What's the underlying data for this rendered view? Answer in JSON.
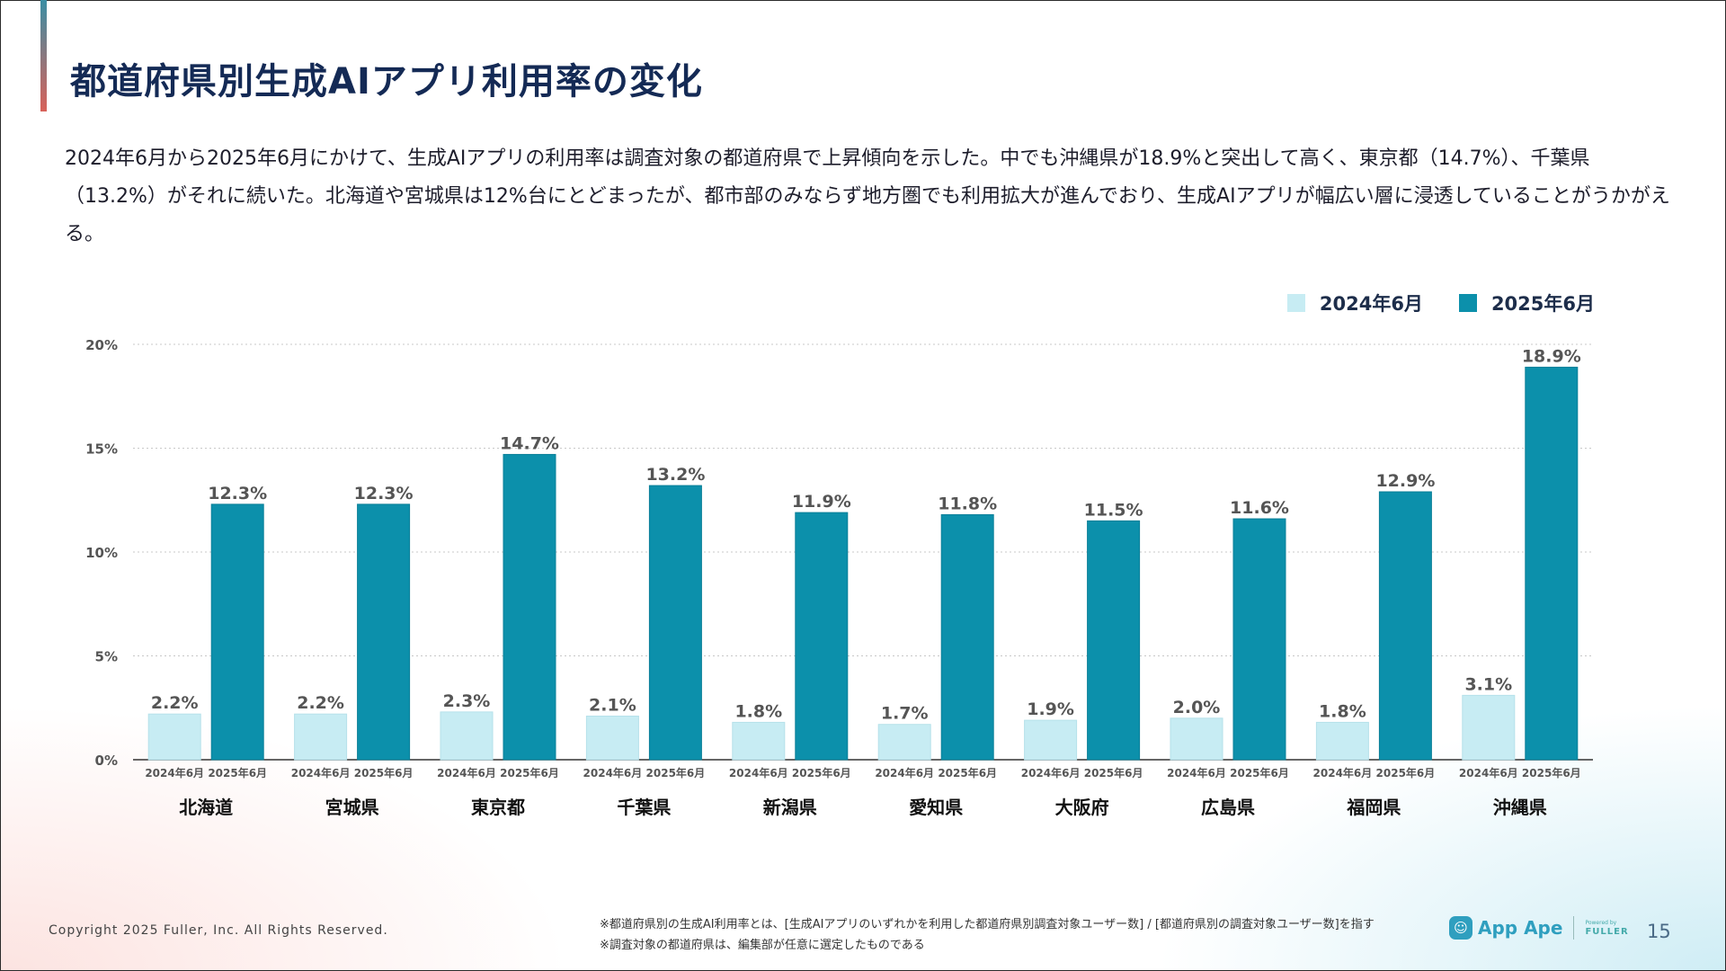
{
  "title": "都道府県別生成AIアプリ利用率の変化",
  "summary": "2024年6月から2025年6月にかけて、生成AIアプリの利用率は調査対象の都道府県で上昇傾向を示した。中でも沖縄県が18.9%と突出して高く、東京都（14.7%）、千葉県（13.2%）がそれに続いた。北海道や宮城県は12%台にとどまったが、都市部のみならず地方圏でも利用拡大が進んでおり、生成AIアプリが幅広い層に浸透していることがうかがえる。",
  "legend": [
    {
      "label": "2024年6月",
      "color": "#c7ecf3"
    },
    {
      "label": "2025年6月",
      "color": "#0c90ab"
    }
  ],
  "chart_data": {
    "type": "bar",
    "categories": [
      "北海道",
      "宮城県",
      "東京都",
      "千葉県",
      "新潟県",
      "愛知県",
      "大阪府",
      "広島県",
      "福岡県",
      "沖縄県"
    ],
    "sub_labels": [
      "2024年6月",
      "2025年6月"
    ],
    "series": [
      {
        "name": "2024年6月",
        "color": "#c7ecf3",
        "values": [
          2.2,
          2.2,
          2.3,
          2.1,
          1.8,
          1.7,
          1.9,
          2.0,
          1.8,
          3.1
        ]
      },
      {
        "name": "2025年6月",
        "color": "#0c90ab",
        "values": [
          12.3,
          12.3,
          14.7,
          13.2,
          11.9,
          11.8,
          11.5,
          11.6,
          12.9,
          18.9
        ]
      }
    ],
    "value_suffix": "%",
    "ylim": [
      0,
      20
    ],
    "yticks": [
      "0%",
      "5%",
      "10%",
      "15%",
      "20%"
    ],
    "ytick_values": [
      0,
      5,
      10,
      15,
      20
    ],
    "grid": true,
    "legend_position": "top-right"
  },
  "footer": {
    "copyright": "Copyright 2025 Fuller, Inc. All Rights Reserved.",
    "note1": "※都道府県別の生成AI利用率とは、[生成AIアプリのいずれかを利用した都道府県別調査対象ユーザー数] / [都道府県別の調査対象ユーザー数]を指す",
    "note2": "※調査対象の都道府県は、編集部が任意に選定したものである",
    "brand": "App Ape",
    "powered": "Powered by",
    "fuller": "FULLER",
    "page": "15"
  }
}
